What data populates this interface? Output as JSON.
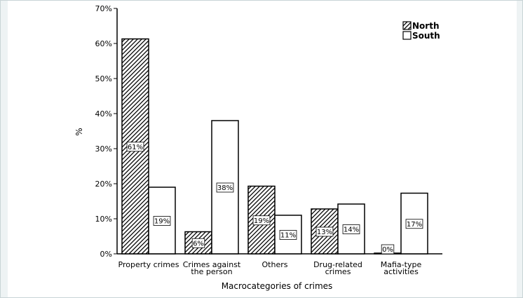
{
  "chart_data": {
    "type": "bar",
    "title": "",
    "xlabel": "Macrocategories of crimes",
    "ylabel": "%",
    "ylim": [
      0,
      70
    ],
    "yticks": [
      "0%",
      "10%",
      "20%",
      "30%",
      "40%",
      "50%",
      "60%",
      "70%"
    ],
    "categories": [
      [
        "Property crimes"
      ],
      [
        "Crimes against",
        "the person"
      ],
      [
        "Others"
      ],
      [
        "Drug-related",
        "crimes"
      ],
      [
        "Mafia-type",
        "activities"
      ]
    ],
    "series": [
      {
        "name": "North",
        "pattern": "hatched",
        "values": [
          61.3,
          6.3,
          19.3,
          12.8,
          0.2
        ],
        "labels": [
          "61%",
          "6%",
          "19%",
          "13%",
          "0%"
        ]
      },
      {
        "name": "South",
        "pattern": "white",
        "values": [
          19.0,
          38.0,
          11.0,
          14.2,
          17.3
        ],
        "labels": [
          "19%",
          "38%",
          "11%",
          "14%",
          "17%"
        ]
      }
    ],
    "legend_position": "top-right",
    "grid": false,
    "colors": {
      "stroke": "#000000",
      "fill": "#ffffff"
    }
  }
}
